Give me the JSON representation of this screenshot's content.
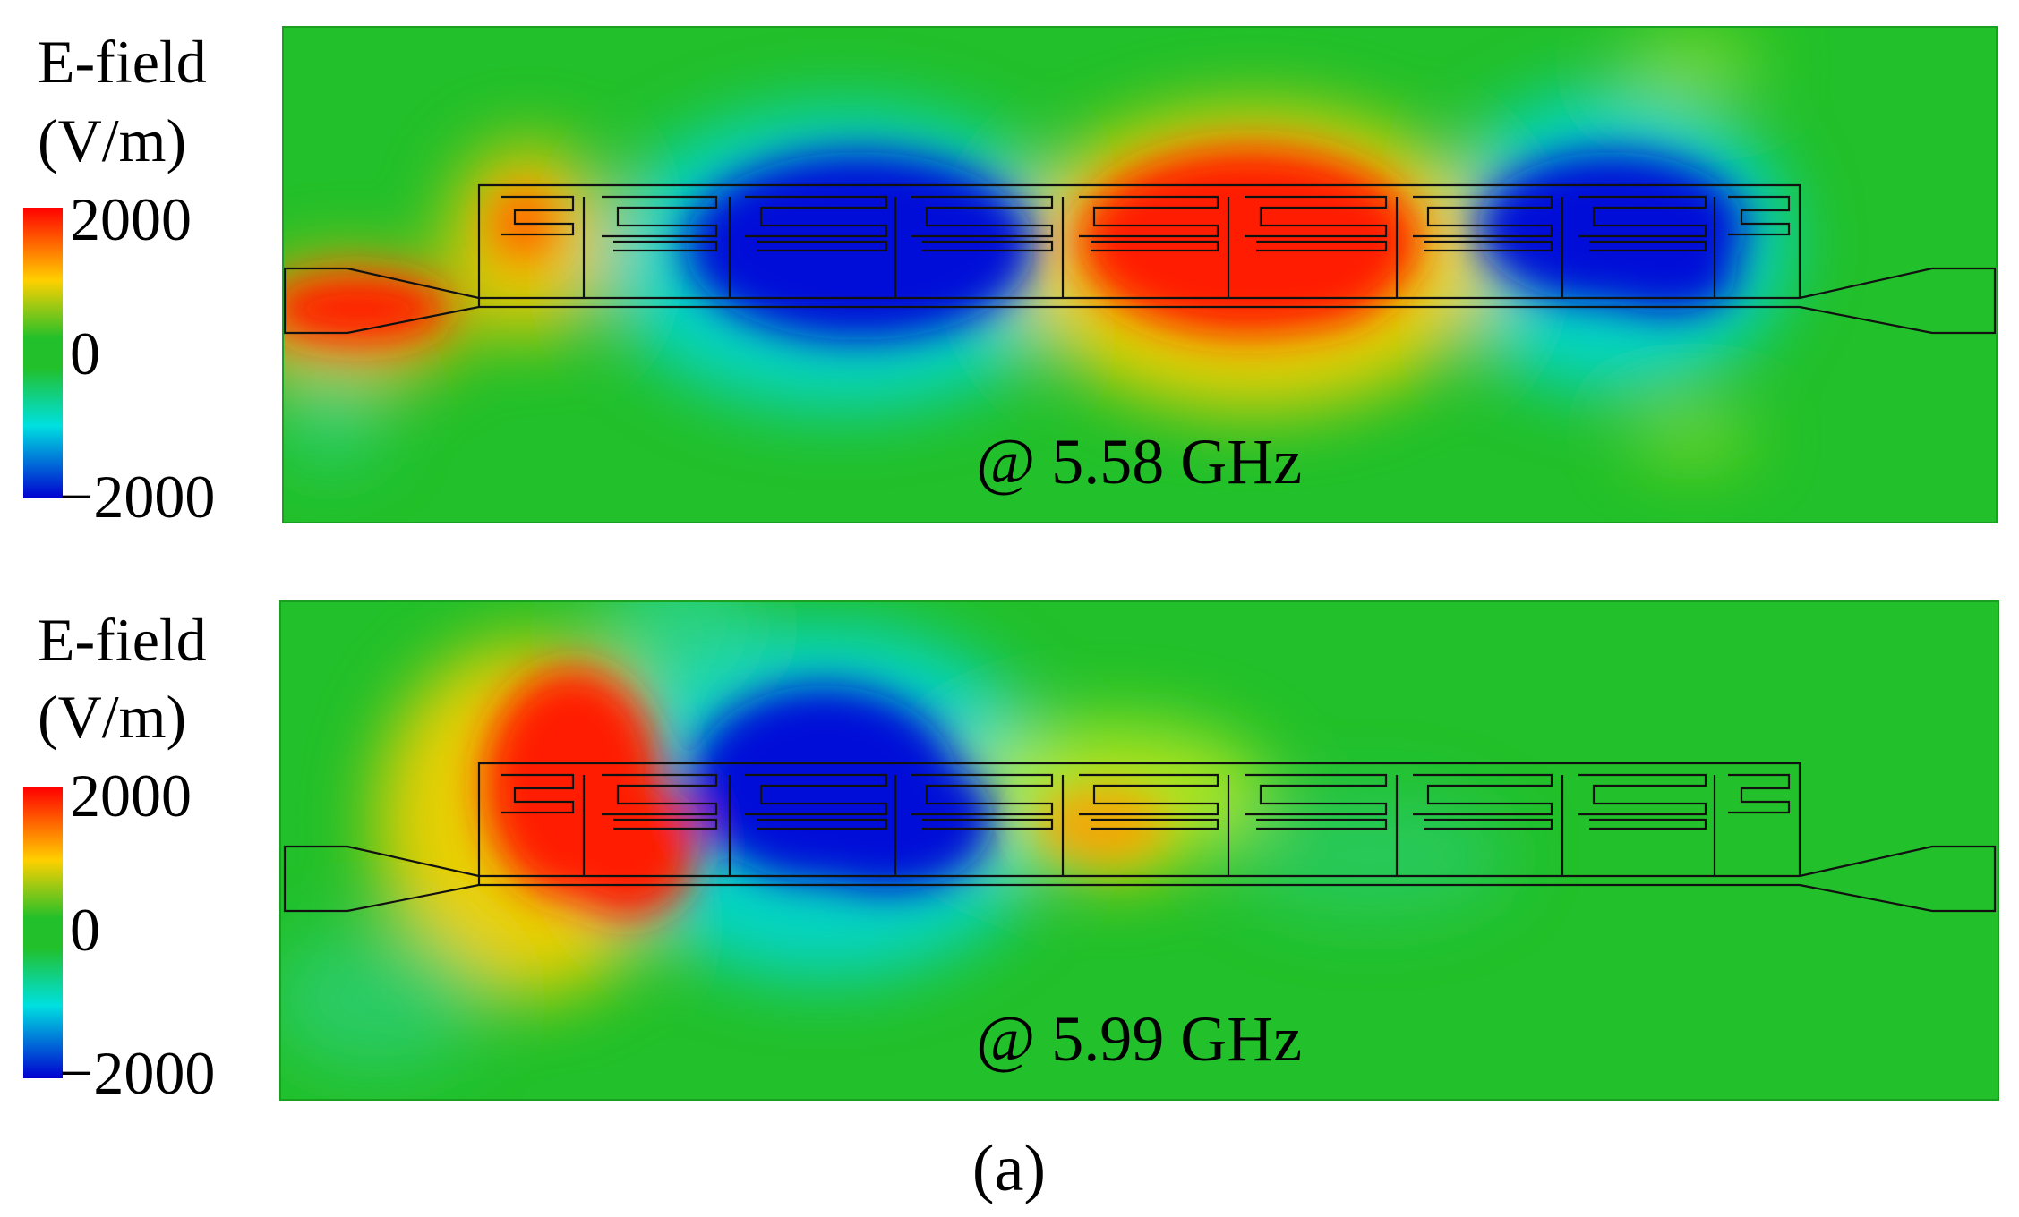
{
  "colors": {
    "background_field": "#22c02a",
    "positive": "#ff1a00",
    "negative": "#0010d8",
    "outline": "#111111"
  },
  "panels": [
    {
      "label_line1": "E-field",
      "label_line2": "(V/m)",
      "scale_max": "2000",
      "scale_mid": "0",
      "scale_min": "−2000",
      "annotation": "@ 5.58 GHz"
    },
    {
      "label_line1": "E-field",
      "label_line2": "(V/m)",
      "scale_max": "2000",
      "scale_mid": "0",
      "scale_min": "−2000",
      "annotation": "@ 5.99 GHz"
    }
  ],
  "caption": "(a)"
}
